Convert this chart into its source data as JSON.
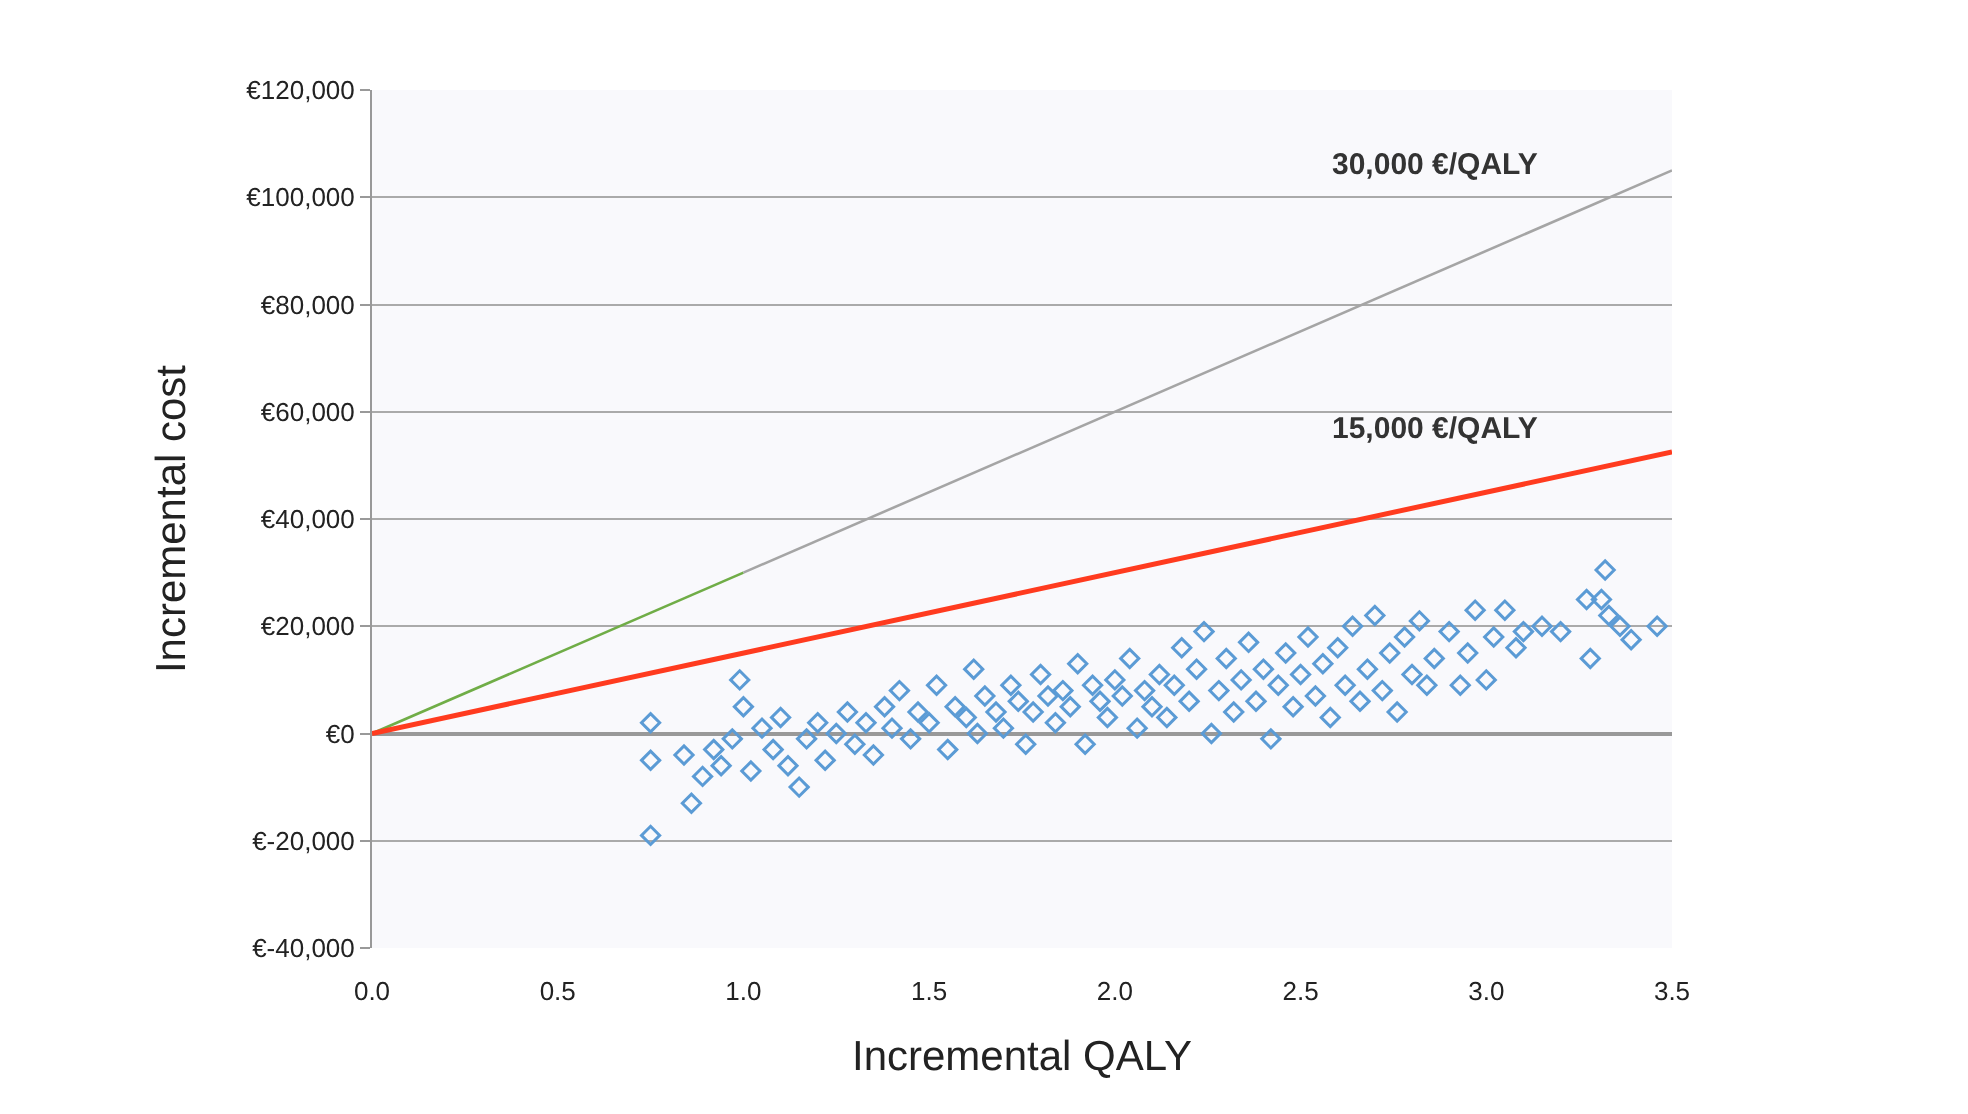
{
  "chart_data": {
    "type": "scatter",
    "xlabel": "Incremental QALY",
    "ylabel": "Incremental cost",
    "xlim": [
      0,
      3.5
    ],
    "ylim": [
      -40000,
      120000
    ],
    "xticks": [
      {
        "value": 0,
        "label": "0.0"
      },
      {
        "value": 0.5,
        "label": "0.5"
      },
      {
        "value": 1,
        "label": "1.0"
      },
      {
        "value": 1.5,
        "label": "1.5"
      },
      {
        "value": 2,
        "label": "2.0"
      },
      {
        "value": 2.5,
        "label": "2.5"
      },
      {
        "value": 3,
        "label": "3.0"
      },
      {
        "value": 3.5,
        "label": "3.5"
      }
    ],
    "yticks": [
      {
        "value": -40000,
        "label": "€-40,000"
      },
      {
        "value": -20000,
        "label": "€-20,000"
      },
      {
        "value": 0,
        "label": "€0"
      },
      {
        "value": 20000,
        "label": "€20,000"
      },
      {
        "value": 40000,
        "label": "€40,000"
      },
      {
        "value": 60000,
        "label": "€60,000"
      },
      {
        "value": 80000,
        "label": "€80,000"
      },
      {
        "value": 100000,
        "label": "€100,000"
      },
      {
        "value": 120000,
        "label": "€120,000"
      }
    ],
    "grid": "y",
    "annotations": [
      "30,000 €/QALY",
      "15,000 €/QALY"
    ],
    "series": [
      {
        "marker": "diamond",
        "color": "#5b9bd5",
        "x": [
          0.75,
          0.75,
          0.75,
          0.84,
          0.86,
          0.89,
          0.92,
          0.94,
          0.97,
          0.99,
          1.0,
          1.02,
          1.05,
          1.08,
          1.1,
          1.12,
          1.15,
          1.17,
          1.2,
          1.22,
          1.25,
          1.28,
          1.3,
          1.33,
          1.35,
          1.38,
          1.4,
          1.42,
          1.45,
          1.47,
          1.5,
          1.52,
          1.55,
          1.57,
          1.6,
          1.62,
          1.63,
          1.65,
          1.68,
          1.7,
          1.72,
          1.74,
          1.76,
          1.78,
          1.8,
          1.82,
          1.84,
          1.86,
          1.88,
          1.9,
          1.92,
          1.94,
          1.96,
          1.98,
          2.0,
          2.02,
          2.04,
          2.06,
          2.08,
          2.1,
          2.12,
          2.14,
          2.16,
          2.18,
          2.2,
          2.22,
          2.24,
          2.26,
          2.28,
          2.3,
          2.32,
          2.34,
          2.36,
          2.38,
          2.4,
          2.42,
          2.44,
          2.46,
          2.48,
          2.5,
          2.52,
          2.54,
          2.56,
          2.58,
          2.6,
          2.62,
          2.64,
          2.66,
          2.68,
          2.7,
          2.72,
          2.74,
          2.76,
          2.78,
          2.8,
          2.82,
          2.84,
          2.86,
          2.9,
          2.93,
          2.95,
          2.97,
          3.0,
          3.02,
          3.05,
          3.08,
          3.1,
          3.15,
          3.2,
          3.27,
          3.28,
          3.31,
          3.32,
          3.33,
          3.36,
          3.39,
          3.46
        ],
        "values": [
          2000,
          -5000,
          -19000,
          -4000,
          -13000,
          -8000,
          -3000,
          -6000,
          -1000,
          10000,
          5000,
          -7000,
          1000,
          -3000,
          3000,
          -6000,
          -10000,
          -1000,
          2000,
          -5000,
          0,
          4000,
          -2000,
          2000,
          -4000,
          5000,
          1000,
          8000,
          -1000,
          4000,
          2000,
          9000,
          -3000,
          5000,
          3000,
          12000,
          0,
          7000,
          4000,
          1000,
          9000,
          6000,
          -2000,
          4000,
          11000,
          7000,
          2000,
          8000,
          5000,
          13000,
          -2000,
          9000,
          6000,
          3000,
          10000,
          7000,
          14000,
          1000,
          8000,
          5000,
          11000,
          3000,
          9000,
          16000,
          6000,
          12000,
          19000,
          0,
          8000,
          14000,
          4000,
          10000,
          17000,
          6000,
          12000,
          -1000,
          9000,
          15000,
          5000,
          11000,
          18000,
          7000,
          13000,
          3000,
          16000,
          9000,
          20000,
          6000,
          12000,
          22000,
          8000,
          15000,
          4000,
          18000,
          11000,
          21000,
          9000,
          14000,
          19000,
          9000,
          15000,
          23000,
          10000,
          18000,
          23000,
          16000,
          19000,
          20000,
          19000,
          25000,
          14000,
          25000,
          30500,
          22000,
          20000,
          17500,
          20000
        ]
      },
      {
        "type": "line",
        "color": "#70ad47",
        "x": [
          0,
          1.0
        ],
        "values": [
          0,
          30000
        ]
      },
      {
        "type": "line",
        "color": "#a5a5a5",
        "x": [
          1.0,
          3.5
        ],
        "values": [
          30000,
          105000
        ]
      },
      {
        "type": "line",
        "color": "#ff3b1f",
        "x": [
          0,
          3.5
        ],
        "values": [
          0,
          52500
        ]
      }
    ]
  }
}
